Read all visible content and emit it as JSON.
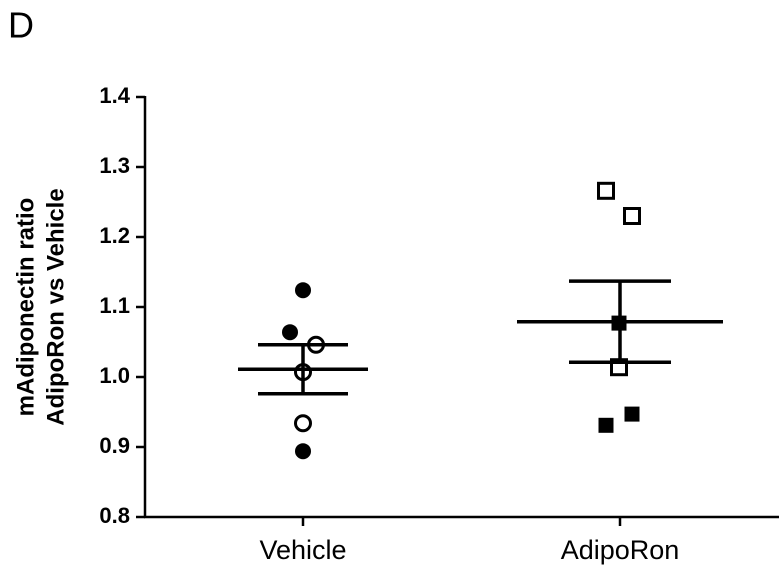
{
  "panel_label": "D",
  "chart_data": {
    "type": "dot",
    "ylabel": [
      "mAdiponectin ratio",
      "AdipoRon vs Vehicle"
    ],
    "categories": [
      "Vehicle",
      "AdipoRon"
    ],
    "ylim": [
      0.8,
      1.4
    ],
    "yticks": [
      0.8,
      0.9,
      {
        "value": 1,
        "label": "1.0"
      },
      1.1,
      1.2,
      1.3,
      1.4
    ],
    "color": "#000000",
    "groups": [
      {
        "marker": "circle",
        "values": [
          1.124,
          1.064,
          0.894,
          1.046,
          1.007,
          0.934
        ],
        "filled": [
          true,
          true,
          true,
          false,
          false,
          false
        ],
        "mean": 1.011,
        "sem": 0.035
      },
      {
        "marker": "square",
        "values": [
          1.266,
          1.23,
          1.014,
          1.077,
          0.947,
          0.931
        ],
        "filled": [
          false,
          false,
          false,
          true,
          true,
          true
        ],
        "mean": 1.079,
        "sem": 0.058
      }
    ]
  }
}
